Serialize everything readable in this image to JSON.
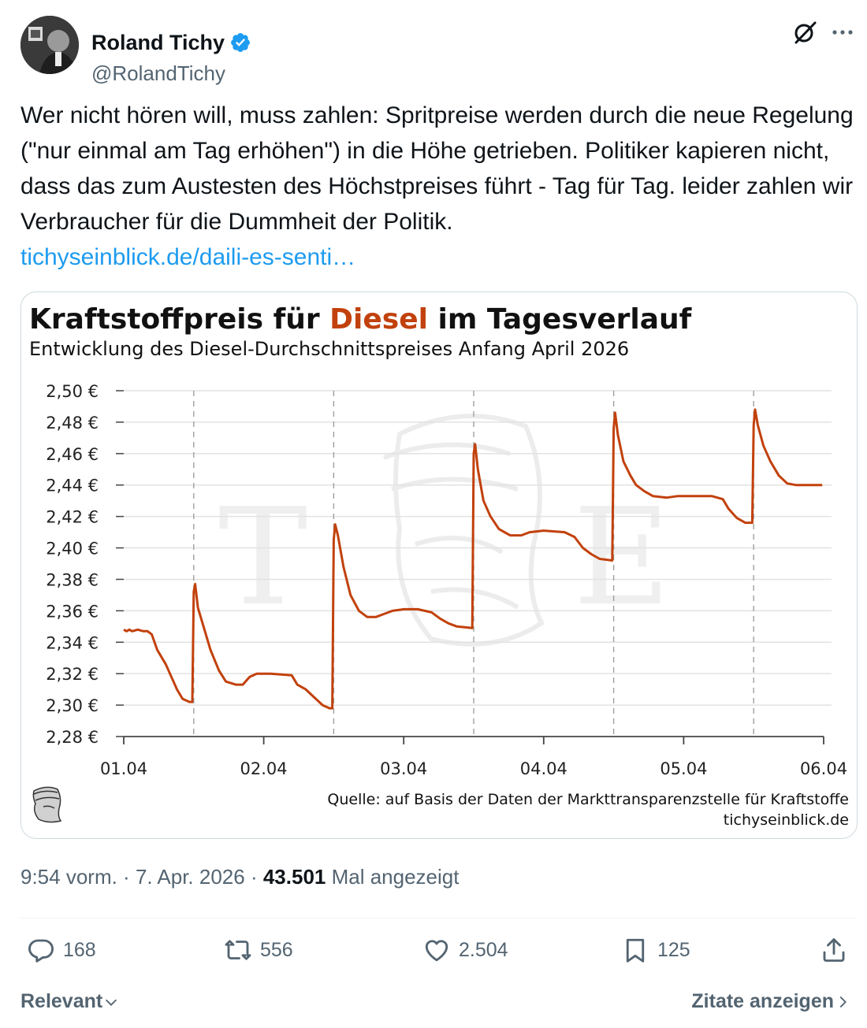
{
  "author": {
    "name": "Roland Tichy",
    "handle": "@RolandTichy"
  },
  "tweet": {
    "text": "Wer nicht hören will, muss zahlen: Spritpreise werden durch die neue Regelung (\"nur einmal am Tag erhöhen\") in die Höhe getrieben. Politiker kapieren nicht, dass das zum Austesten des Höchstpreises führt - Tag für Tag. leider zahlen wir Verbraucher für die Dummheit der Politik.",
    "link": "tichyseinblick.de/daili-es-senti…"
  },
  "chart_data": {
    "type": "line",
    "title_parts": [
      "Kraftstoffpreis für ",
      "Diesel",
      " im Tagesverlauf"
    ],
    "subtitle": "Entwicklung des Diesel-Durchschnittspreises Anfang April 2026",
    "xlabel": "",
    "ylabel": "",
    "x_ticks": [
      "01.04",
      "02.04",
      "03.04",
      "04.04",
      "05.04",
      "06.04"
    ],
    "y_ticks": [
      "2,50 €",
      "2,48 €",
      "2,46 €",
      "2,44 €",
      "2,42 €",
      "2,40 €",
      "2,38 €",
      "2,36 €",
      "2,34 €",
      "2,32 €",
      "2,30 €",
      "2,28 €"
    ],
    "ylim": [
      2.28,
      2.5
    ],
    "xlim": [
      0,
      5
    ],
    "grid": true,
    "series": [
      {
        "color": "#c2410c",
        "points": [
          [
            0.0,
            2.348
          ],
          [
            0.02,
            2.347
          ],
          [
            0.04,
            2.348
          ],
          [
            0.06,
            2.347
          ],
          [
            0.1,
            2.348
          ],
          [
            0.14,
            2.347
          ],
          [
            0.17,
            2.347
          ],
          [
            0.2,
            2.345
          ],
          [
            0.24,
            2.335
          ],
          [
            0.3,
            2.326
          ],
          [
            0.34,
            2.318
          ],
          [
            0.38,
            2.31
          ],
          [
            0.42,
            2.304
          ],
          [
            0.47,
            2.302
          ],
          [
            0.49,
            2.302
          ],
          [
            0.5,
            2.372
          ],
          [
            0.51,
            2.377
          ],
          [
            0.53,
            2.362
          ],
          [
            0.57,
            2.35
          ],
          [
            0.62,
            2.335
          ],
          [
            0.68,
            2.322
          ],
          [
            0.73,
            2.315
          ],
          [
            0.8,
            2.313
          ],
          [
            0.85,
            2.313
          ],
          [
            0.9,
            2.318
          ],
          [
            0.95,
            2.32
          ],
          [
            1.05,
            2.32
          ],
          [
            1.2,
            2.319
          ],
          [
            1.24,
            2.313
          ],
          [
            1.3,
            2.31
          ],
          [
            1.36,
            2.305
          ],
          [
            1.42,
            2.3
          ],
          [
            1.47,
            2.298
          ],
          [
            1.49,
            2.298
          ],
          [
            1.5,
            2.405
          ],
          [
            1.51,
            2.415
          ],
          [
            1.53,
            2.408
          ],
          [
            1.57,
            2.388
          ],
          [
            1.62,
            2.37
          ],
          [
            1.68,
            2.36
          ],
          [
            1.74,
            2.356
          ],
          [
            1.8,
            2.356
          ],
          [
            1.86,
            2.358
          ],
          [
            1.92,
            2.36
          ],
          [
            2.0,
            2.361
          ],
          [
            2.1,
            2.361
          ],
          [
            2.2,
            2.359
          ],
          [
            2.26,
            2.355
          ],
          [
            2.32,
            2.352
          ],
          [
            2.38,
            2.35
          ],
          [
            2.49,
            2.349
          ],
          [
            2.5,
            2.46
          ],
          [
            2.51,
            2.466
          ],
          [
            2.53,
            2.45
          ],
          [
            2.57,
            2.43
          ],
          [
            2.62,
            2.42
          ],
          [
            2.68,
            2.412
          ],
          [
            2.76,
            2.408
          ],
          [
            2.84,
            2.408
          ],
          [
            2.9,
            2.41
          ],
          [
            3.0,
            2.411
          ],
          [
            3.15,
            2.41
          ],
          [
            3.22,
            2.407
          ],
          [
            3.28,
            2.4
          ],
          [
            3.34,
            2.396
          ],
          [
            3.4,
            2.393
          ],
          [
            3.49,
            2.392
          ],
          [
            3.5,
            2.476
          ],
          [
            3.51,
            2.486
          ],
          [
            3.53,
            2.472
          ],
          [
            3.57,
            2.455
          ],
          [
            3.62,
            2.446
          ],
          [
            3.66,
            2.44
          ],
          [
            3.72,
            2.436
          ],
          [
            3.78,
            2.433
          ],
          [
            3.88,
            2.432
          ],
          [
            3.96,
            2.433
          ],
          [
            4.05,
            2.433
          ],
          [
            4.2,
            2.433
          ],
          [
            4.28,
            2.431
          ],
          [
            4.32,
            2.425
          ],
          [
            4.38,
            2.419
          ],
          [
            4.44,
            2.416
          ],
          [
            4.49,
            2.416
          ],
          [
            4.5,
            2.478
          ],
          [
            4.51,
            2.488
          ],
          [
            4.53,
            2.478
          ],
          [
            4.57,
            2.465
          ],
          [
            4.62,
            2.455
          ],
          [
            4.68,
            2.446
          ],
          [
            4.74,
            2.441
          ],
          [
            4.8,
            2.44
          ],
          [
            4.86,
            2.44
          ],
          [
            4.92,
            2.44
          ],
          [
            4.99,
            2.44
          ]
        ]
      }
    ],
    "source_line1": "Quelle: auf Basis der Daten der Markttransparenzstelle für Kraftstoffe",
    "source_line2": "tichyseinblick.de",
    "watermark_letters": [
      "T",
      "E"
    ],
    "line_color": "#c2410c",
    "highlight_color": "#c2410c"
  },
  "meta": {
    "time": "9:54 vorm.",
    "sep1": " · ",
    "date": "7. Apr. 2026",
    "sep2": " · ",
    "views": "43.501",
    "views_label": " Mal angezeigt"
  },
  "actions": {
    "replies": "168",
    "reposts": "556",
    "likes": "2.504",
    "bookmarks": "125"
  },
  "footer": {
    "sort_label": "Relevant",
    "quotes_label": "Zitate anzeigen"
  },
  "colors": {
    "link": "#1d9bf0",
    "verified": "#1d9bf0",
    "secondary_text": "#536471"
  }
}
